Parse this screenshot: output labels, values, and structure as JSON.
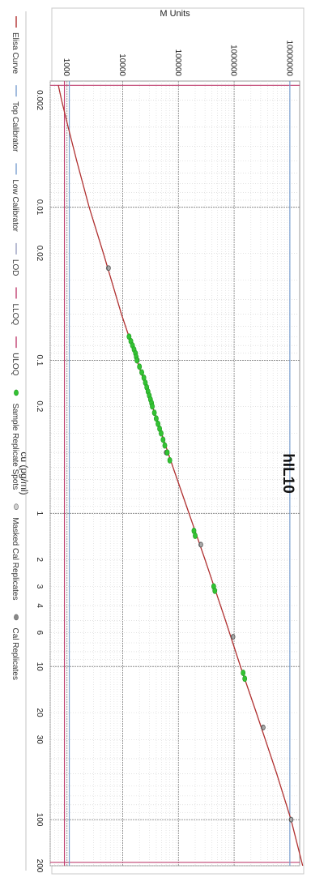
{
  "chart_data": {
    "type": "scatter",
    "title": "hIL10",
    "xlabel": "cu (pg/ml)",
    "ylabel": "M Units",
    "x_scale": "log",
    "y_scale": "log",
    "xlim": [
      0.0015,
      200
    ],
    "ylim": [
      500,
      15000000
    ],
    "x_ticks": [
      0.002,
      0.01,
      0.02,
      0.1,
      0.2,
      1,
      2,
      3,
      4,
      6,
      10,
      20,
      30,
      100,
      200
    ],
    "x_tick_labels": [
      "0.002",
      "0.01",
      "0.02",
      "0.1",
      "0.2",
      "1",
      "2",
      "3",
      "4",
      "6",
      "10",
      "20",
      "30",
      "100",
      "200"
    ],
    "y_ticks": [
      1000,
      10000,
      100000,
      1000000,
      10000000
    ],
    "y_tick_labels": [
      "1000",
      "10000",
      "100000",
      "1000000",
      "10000000"
    ],
    "grid": true,
    "legend_position": "bottom",
    "legend": [
      {
        "label": "Elisa Curve",
        "kind": "line",
        "color": "#b03030"
      },
      {
        "label": "Top Calibrator",
        "kind": "line",
        "color": "#7aa0d0"
      },
      {
        "label": "Low Calibrator",
        "kind": "line",
        "color": "#7aa0d0"
      },
      {
        "label": "LOD",
        "kind": "line",
        "color": "#9aa0c0"
      },
      {
        "label": "LLOQ",
        "kind": "line",
        "color": "#c04070"
      },
      {
        "label": "ULOQ",
        "kind": "line",
        "color": "#c04070"
      },
      {
        "label": "Sample Replicate Spots",
        "kind": "marker",
        "color": "#33c233"
      },
      {
        "label": "Masked Cal Replicates",
        "kind": "marker",
        "color": "#d0d0d0"
      },
      {
        "label": "Cal Replicates",
        "kind": "marker",
        "color": "#888888"
      }
    ],
    "reference_lines": {
      "x": [
        {
          "label": "LLOQ",
          "value": 0.0016,
          "color": "#c04070"
        },
        {
          "label": "ULOQ",
          "value": 190,
          "color": "#c04070"
        }
      ],
      "y": [
        {
          "label": "LOD",
          "value": 900,
          "color": "#c04070"
        },
        {
          "label": "Low Calibrator",
          "value": 1100,
          "color": "#7aa0d0"
        },
        {
          "label": "Top Calibrator",
          "value": 10000000,
          "color": "#7aa0d0"
        }
      ]
    },
    "curve": {
      "name": "Elisa Curve",
      "color": "#b03030",
      "x": [
        0.0016,
        0.002,
        0.003,
        0.005,
        0.01,
        0.02,
        0.05,
        0.1,
        0.2,
        0.5,
        1,
        2,
        5,
        10,
        20,
        50,
        100,
        200
      ],
      "y": [
        700,
        800,
        1050,
        1500,
        2500,
        4500,
        9500,
        18000,
        34000,
        80000,
        155000,
        300000,
        700000,
        1300000,
        2500000,
        5800000,
        10500000,
        17000000
      ]
    },
    "series": [
      {
        "name": "Cal Replicates",
        "color": "#888888",
        "x": [
          0.025,
          0.025,
          0.1,
          0.1,
          0.4,
          0.4,
          1.6,
          1.6,
          6.4,
          6.4,
          25,
          25,
          100,
          100
        ],
        "y": [
          5500,
          5600,
          18000,
          18500,
          60000,
          61000,
          250000,
          255000,
          950000,
          960000,
          3300000,
          3350000,
          10500000,
          10600000
        ]
      },
      {
        "name": "Sample Replicate Spots",
        "color": "#33c233",
        "x": [
          0.07,
          0.075,
          0.08,
          0.085,
          0.09,
          0.095,
          0.1,
          0.11,
          0.12,
          0.13,
          0.14,
          0.15,
          0.16,
          0.17,
          0.18,
          0.19,
          0.2,
          0.22,
          0.24,
          0.26,
          0.28,
          0.3,
          0.33,
          0.36,
          0.4,
          0.45,
          1.3,
          1.4,
          3.0,
          3.2,
          11,
          12
        ],
        "y": [
          13000,
          14000,
          15000,
          16000,
          17000,
          17500,
          18000,
          20000,
          22000,
          24000,
          25500,
          27000,
          28500,
          30000,
          31500,
          33000,
          34000,
          37000,
          40000,
          43000,
          46000,
          49000,
          53000,
          57000,
          63000,
          70000,
          190000,
          200000,
          430000,
          450000,
          1450000,
          1550000
        ]
      }
    ]
  }
}
